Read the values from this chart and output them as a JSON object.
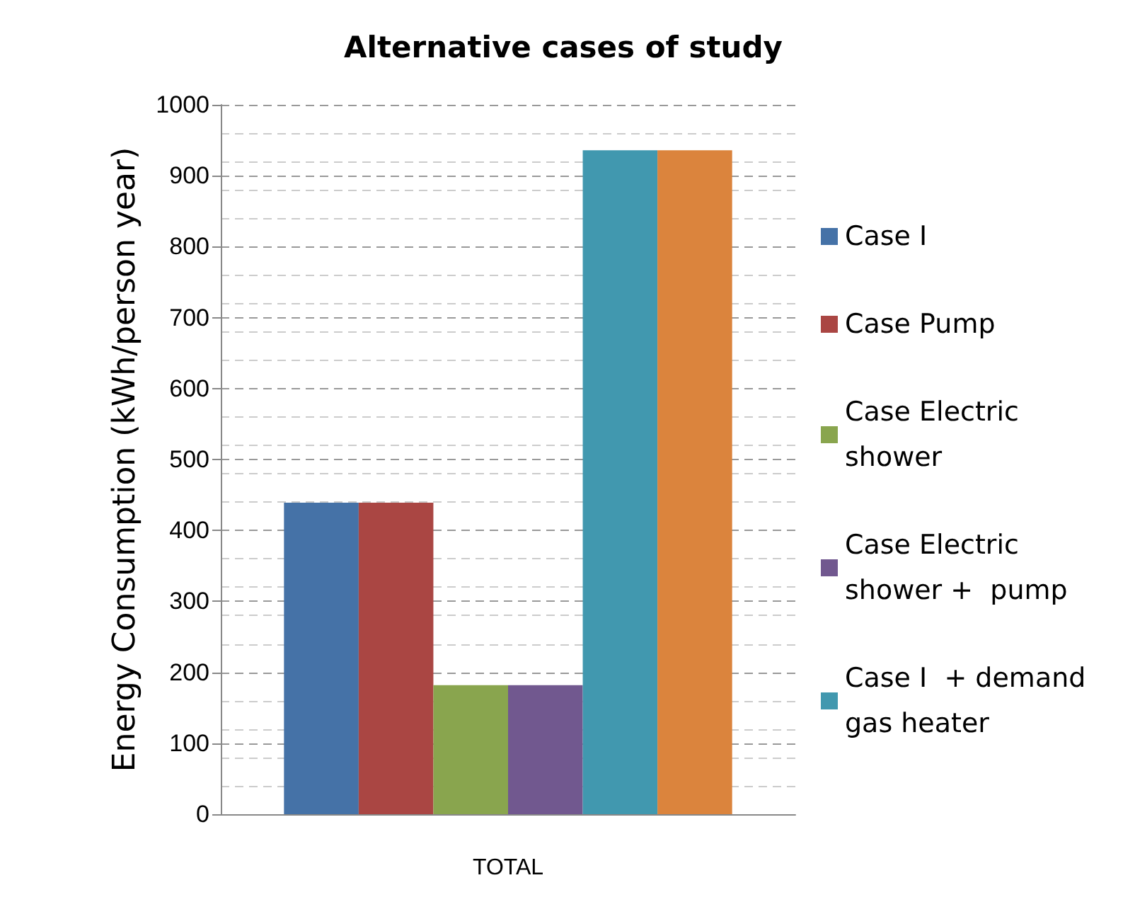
{
  "chart_data": {
    "type": "bar",
    "title": "Alternative cases of study",
    "ylabel": "Energy Consumption (kWh/person year)",
    "categories": [
      "TOTAL"
    ],
    "series": [
      {
        "name": "Case I",
        "color": "#4572a7",
        "values": [
          439
        ]
      },
      {
        "name": "Case Pump",
        "color": "#aa4643",
        "values": [
          439
        ]
      },
      {
        "name": "Case Electric shower",
        "color": "#89a54e",
        "values": [
          182
        ]
      },
      {
        "name": "Case Electric shower +  pump",
        "color": "#71588f",
        "values": [
          182
        ]
      },
      {
        "name": "Case I  + demand gas heater",
        "color": "#4198af",
        "values": [
          936
        ]
      },
      {
        "color": "#db843d",
        "values": [
          936
        ]
      }
    ],
    "ylim": [
      0,
      1000
    ],
    "yticks": [
      0,
      100,
      200,
      300,
      400,
      500,
      600,
      700,
      800,
      900,
      1000
    ],
    "grid": "y",
    "legend": "right"
  }
}
